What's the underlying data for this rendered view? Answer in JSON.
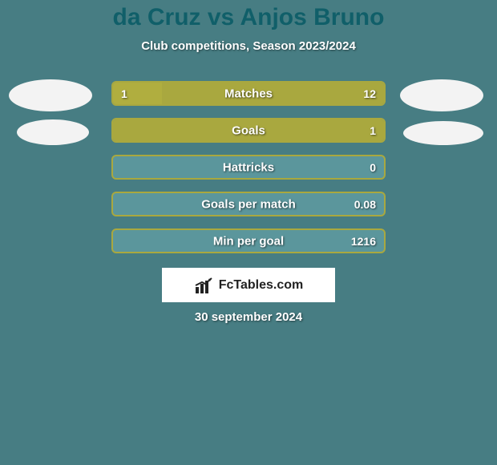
{
  "title": "da Cruz vs Anjos Bruno",
  "title_color": "#105f69",
  "subtitle": "Club competitions, Season 2023/2024",
  "subtitle_color": "#ffffff",
  "background_color": "#477d83",
  "avatar_color": "#f3f3f3",
  "bars": [
    {
      "label": "Matches",
      "left": "1",
      "right": "12",
      "left_pct": 18,
      "right_pct": 82
    },
    {
      "label": "Goals",
      "left": "",
      "right": "1",
      "left_pct": 0,
      "right_pct": 100
    },
    {
      "label": "Hattricks",
      "left": "",
      "right": "0",
      "left_pct": 0,
      "right_pct": 0
    },
    {
      "label": "Goals per match",
      "left": "",
      "right": "0.08",
      "left_pct": 0,
      "right_pct": 0
    },
    {
      "label": "Min per goal",
      "left": "",
      "right": "1216",
      "left_pct": 0,
      "right_pct": 0
    }
  ],
  "bar_style": {
    "track_bg": "#5b969c",
    "border_color": "#a9a83f",
    "left_fill": "#b0ae3f",
    "right_fill": "#a9a83f",
    "label_color": "#ffffff",
    "value_color": "#ffffff",
    "border_width": 2
  },
  "logo": {
    "text": "FcTables.com",
    "bg": "#ffffff",
    "text_color": "#222222"
  },
  "date": "30 september 2024",
  "date_color": "#ffffff"
}
